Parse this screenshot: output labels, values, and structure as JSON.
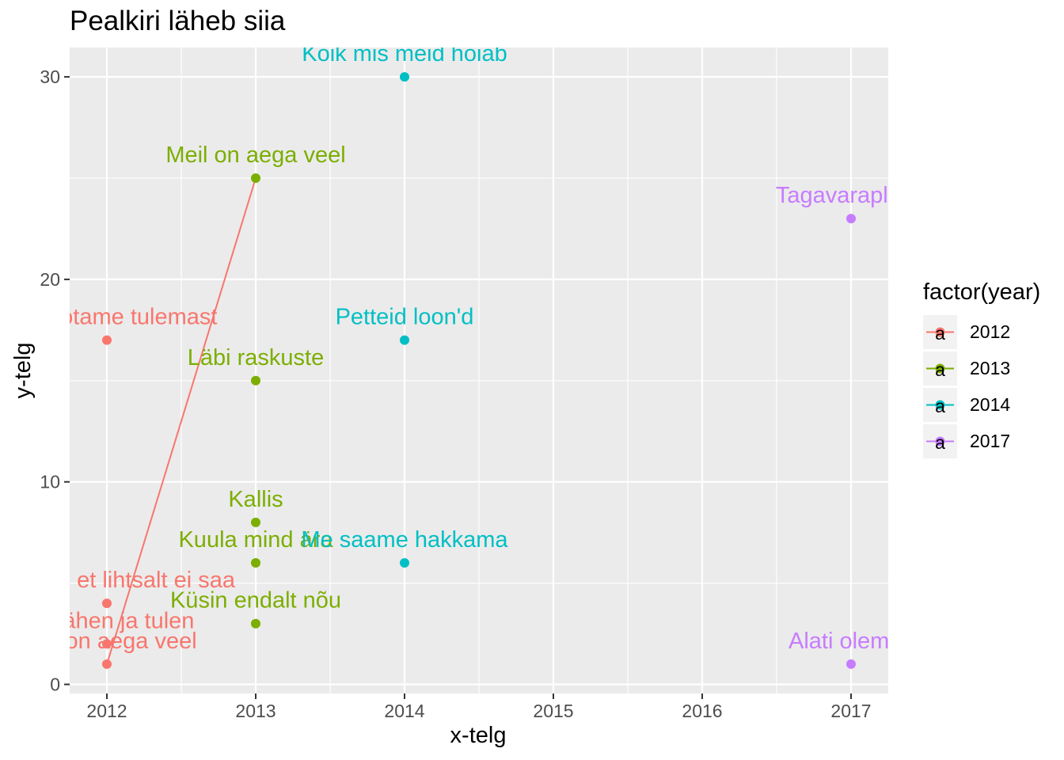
{
  "chart_data": {
    "type": "scatter",
    "title": "Pealkiri läheb siia",
    "xlabel": "x-telg",
    "ylabel": "y-telg",
    "xlim": [
      2011.75,
      2017.25
    ],
    "ylim": [
      -0.45,
      31.45
    ],
    "x_ticks": [
      2012,
      2013,
      2014,
      2015,
      2016,
      2017
    ],
    "y_ticks": [
      0,
      10,
      20,
      30
    ],
    "grid": true,
    "legend": {
      "title": "factor(year)",
      "position": "right",
      "key_glyph": "a"
    },
    "series": [
      {
        "name": "2012",
        "color": "#F8766D",
        "points": [
          {
            "x": 2012,
            "y": 17,
            "label": "Kõik ootame tulemast"
          },
          {
            "x": 2012,
            "y": 4,
            "label": "Mõtlesin, et lihtsalt ei saa"
          },
          {
            "x": 2012,
            "y": 2,
            "label": "Ma lähen ja tulen"
          },
          {
            "x": 2012,
            "y": 1,
            "label": "Meil on aega veel"
          }
        ],
        "line": [
          {
            "x": 2012,
            "y": 1
          },
          {
            "x": 2013,
            "y": 25
          }
        ]
      },
      {
        "name": "2013",
        "color": "#7CAE00",
        "points": [
          {
            "x": 2013,
            "y": 25,
            "label": "Meil on aega veel"
          },
          {
            "x": 2013,
            "y": 15,
            "label": "Läbi raskuste"
          },
          {
            "x": 2013,
            "y": 8,
            "label": "Kallis"
          },
          {
            "x": 2013,
            "y": 6,
            "label": "Kuula mind ära"
          },
          {
            "x": 2013,
            "y": 3,
            "label": "Küsin endalt nõu"
          }
        ]
      },
      {
        "name": "2014",
        "color": "#00BFC4",
        "points": [
          {
            "x": 2014,
            "y": 30,
            "label": "Kõik mis meid hoiab"
          },
          {
            "x": 2014,
            "y": 17,
            "label": "Petteid loon'd"
          },
          {
            "x": 2014,
            "y": 6,
            "label": "Me saame hakkama"
          }
        ]
      },
      {
        "name": "2017",
        "color": "#C77CFF",
        "points": [
          {
            "x": 2017,
            "y": 23,
            "label": "Tagavaraplaan"
          },
          {
            "x": 2017,
            "y": 1,
            "label": "Alati olemas"
          }
        ]
      }
    ]
  }
}
